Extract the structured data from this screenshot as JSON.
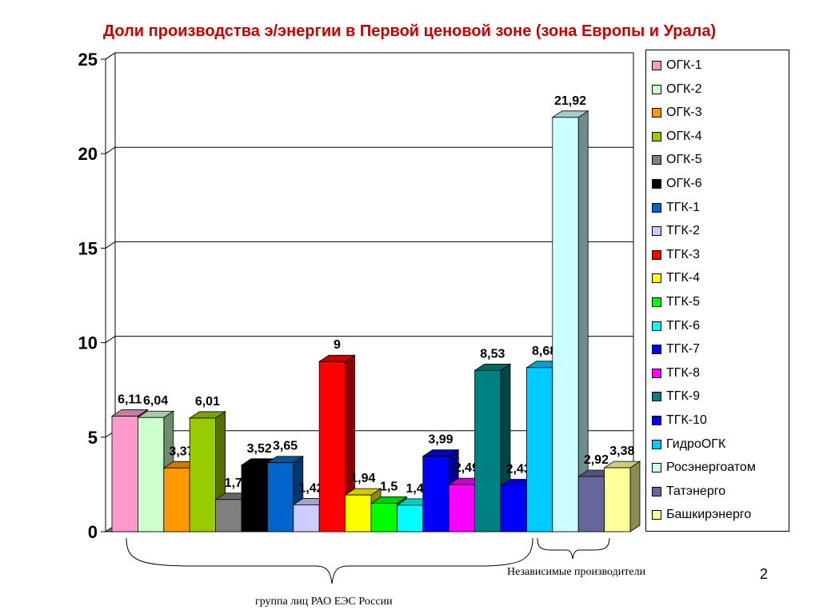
{
  "title": "Доли производства э/энергии в Первой ценовой зоне (зона Европы и Урала)",
  "page_number": "2",
  "annotations": {
    "independent": "Независимые производители",
    "rao_group": "группа лиц  РАО ЕЭС России"
  },
  "chart_data": {
    "type": "bar",
    "title": "Доли производства э/энергии в Первой ценовой зоне (зона Европы и Урала)",
    "ylim": [
      0,
      25
    ],
    "yticks": [
      0,
      5,
      10,
      15,
      20,
      25
    ],
    "grid": true,
    "legend_position": "right",
    "series": [
      {
        "name": "ОГК-1",
        "value": 6.11,
        "label": "6,11",
        "color": "#ff99cc"
      },
      {
        "name": "ОГК-2",
        "value": 6.04,
        "label": "6,04",
        "color": "#ccffcc"
      },
      {
        "name": "ОГК-3",
        "value": 3.37,
        "label": "3,37",
        "color": "#ff9900"
      },
      {
        "name": "ОГК-4",
        "value": 6.01,
        "label": "6,01",
        "color": "#99cc00"
      },
      {
        "name": "ОГК-5",
        "value": 1.7,
        "label": "1,7",
        "color": "#808080"
      },
      {
        "name": "ОГК-6",
        "value": 3.52,
        "label": "3,52",
        "color": "#000000"
      },
      {
        "name": "ТГК-1",
        "value": 3.65,
        "label": "3,65",
        "color": "#0066cc"
      },
      {
        "name": "ТГК-2",
        "value": 1.42,
        "label": "1,42",
        "color": "#ccccff"
      },
      {
        "name": "ТГК-3",
        "value": 9,
        "label": "9",
        "color": "#ff0000"
      },
      {
        "name": "ТГК-4",
        "value": 1.94,
        "label": "1,94",
        "color": "#ffff00"
      },
      {
        "name": "ТГК-5",
        "value": 1.5,
        "label": "1,5",
        "color": "#00ff00"
      },
      {
        "name": "ТГК-6",
        "value": 1.4,
        "label": "1,4",
        "color": "#00ffff"
      },
      {
        "name": "ТГК-7",
        "value": 3.99,
        "label": "3,99",
        "color": "#0000ff"
      },
      {
        "name": "ТГК-8",
        "value": 2.49,
        "label": "2,49",
        "color": "#ff00ff"
      },
      {
        "name": "ТГК-9",
        "value": 8.53,
        "label": "8,53",
        "color": "#008080"
      },
      {
        "name": "ТГК-10",
        "value": 2.43,
        "label": "2,43",
        "color": "#0000ff"
      },
      {
        "name": "ГидроОГК",
        "value": 8.68,
        "label": "8,68",
        "color": "#00ccff"
      },
      {
        "name": "Росэнергоатом",
        "value": 21.92,
        "label": "21,92",
        "color": "#ccffff"
      },
      {
        "name": "Татэнерго",
        "value": 2.92,
        "label": "2,92",
        "color": "#666699"
      },
      {
        "name": "Башкирэнерго",
        "value": 3.38,
        "label": "3,38",
        "color": "#ffff99"
      }
    ]
  }
}
